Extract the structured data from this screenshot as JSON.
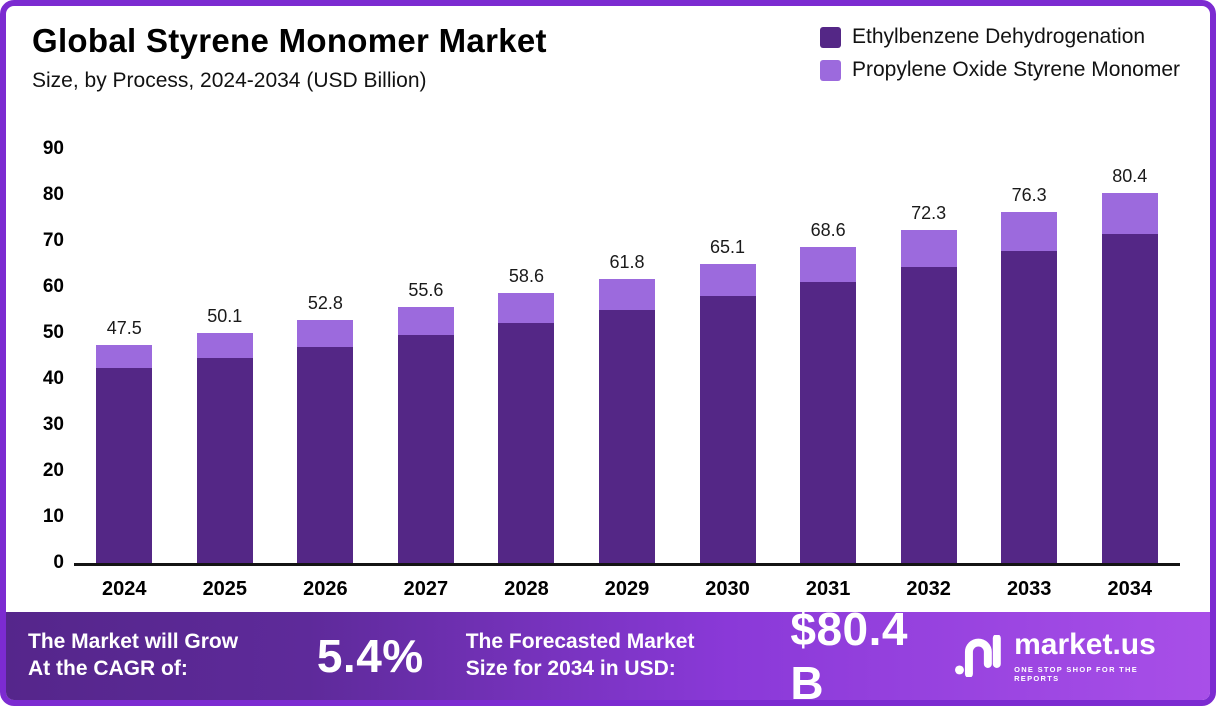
{
  "header": {
    "title": "Global Styrene Monomer Market",
    "subtitle": "Size, by Process, 2024-2034 (USD Billion)"
  },
  "legend": {
    "items": [
      {
        "label": "Ethylbenzene Dehydrogenation",
        "color": "#542786"
      },
      {
        "label": "Propylene Oxide Styrene Monomer",
        "color": "#9c6add"
      }
    ]
  },
  "chart_data": {
    "type": "bar",
    "stacked": true,
    "title": "Global Styrene Monomer Market Size, by Process, 2024-2034 (USD Billion)",
    "categories": [
      "2024",
      "2025",
      "2026",
      "2027",
      "2028",
      "2029",
      "2030",
      "2031",
      "2032",
      "2033",
      "2034"
    ],
    "series": [
      {
        "name": "Ethylbenzene Dehydrogenation",
        "color": "#542786",
        "values": [
          42.3,
          44.6,
          47.0,
          49.5,
          52.2,
          55.0,
          58.0,
          61.1,
          64.4,
          67.9,
          71.6
        ]
      },
      {
        "name": "Propylene Oxide Styrene Monomer",
        "color": "#9c6add",
        "values": [
          5.2,
          5.5,
          5.8,
          6.1,
          6.4,
          6.8,
          7.1,
          7.5,
          7.9,
          8.4,
          8.8
        ]
      }
    ],
    "totals": [
      47.5,
      50.1,
      52.8,
      55.6,
      58.6,
      61.8,
      65.1,
      68.6,
      72.3,
      76.3,
      80.4
    ],
    "ylim": [
      0,
      90
    ],
    "yticks": [
      0,
      10,
      20,
      30,
      40,
      50,
      60,
      70,
      80,
      90
    ],
    "grid": false,
    "legend_position": "top-right",
    "xlabel": "",
    "ylabel": ""
  },
  "footer": {
    "cagr_label": "The Market will Grow\nAt the CAGR of:",
    "cagr_value": "5.4%",
    "forecast_label": "The Forecasted Market\nSize for 2034 in USD:",
    "forecast_value": "$80.4 B",
    "brand_name": "market.us",
    "brand_tagline": "ONE STOP SHOP FOR THE REPORTS"
  }
}
